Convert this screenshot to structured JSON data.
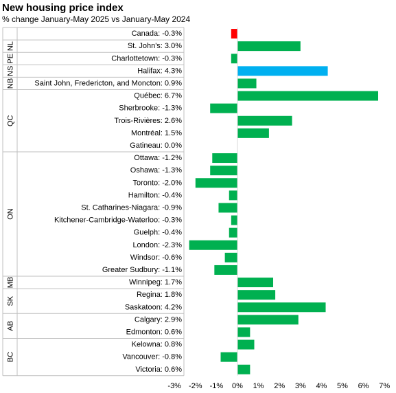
{
  "chart_data": {
    "type": "bar",
    "orientation": "horizontal",
    "title": "New housing price index",
    "subtitle": "% change January-May 2025 vs January-May 2024",
    "xlabel": "",
    "ylabel": "",
    "xlim": [
      -3,
      7
    ],
    "x_ticks": [
      "-3%",
      "-2%",
      "-1%",
      "0%",
      "1%",
      "2%",
      "3%",
      "4%",
      "5%",
      "6%",
      "7%"
    ],
    "grid": false,
    "legend": "none",
    "colors": {
      "default": "#00b050",
      "canada": "#ff0000",
      "highlight": "#00b0f0"
    },
    "groups": [
      {
        "name": "",
        "bars": [
          {
            "label": "Canada",
            "value": -0.3,
            "display": "-0.3%",
            "color": "canada"
          }
        ]
      },
      {
        "name": "NL",
        "bars": [
          {
            "label": "St. John's",
            "value": 3.0,
            "display": "3.0%"
          }
        ]
      },
      {
        "name": "PE",
        "bars": [
          {
            "label": "Charlottetown",
            "value": -0.3,
            "display": "-0.3%"
          }
        ]
      },
      {
        "name": "NS",
        "bars": [
          {
            "label": "Halifax",
            "value": 4.3,
            "display": "4.3%",
            "color": "highlight"
          }
        ]
      },
      {
        "name": "NB",
        "bars": [
          {
            "label": "Saint John, Fredericton, and Moncton",
            "value": 0.9,
            "display": "0.9%"
          }
        ]
      },
      {
        "name": "QC",
        "bars": [
          {
            "label": "Québec",
            "value": 6.7,
            "display": "6.7%"
          },
          {
            "label": "Sherbrooke",
            "value": -1.3,
            "display": "-1.3%"
          },
          {
            "label": "Trois-Rivières",
            "value": 2.6,
            "display": "2.6%"
          },
          {
            "label": "Montréal",
            "value": 1.5,
            "display": "1.5%"
          },
          {
            "label": "Gatineau",
            "value": 0.0,
            "display": "0.0%"
          }
        ]
      },
      {
        "name": "ON",
        "bars": [
          {
            "label": "Ottawa",
            "value": -1.2,
            "display": "-1.2%"
          },
          {
            "label": "Oshawa",
            "value": -1.3,
            "display": "-1.3%"
          },
          {
            "label": "Toronto",
            "value": -2.0,
            "display": "-2.0%"
          },
          {
            "label": "Hamilton",
            "value": -0.4,
            "display": "-0.4%"
          },
          {
            "label": "St. Catharines-Niagara",
            "value": -0.9,
            "display": "-0.9%"
          },
          {
            "label": "Kitchener-Cambridge-Waterloo",
            "value": -0.3,
            "display": "-0.3%"
          },
          {
            "label": "Guelph",
            "value": -0.4,
            "display": "-0.4%"
          },
          {
            "label": "London",
            "value": -2.3,
            "display": "-2.3%"
          },
          {
            "label": "Windsor",
            "value": -0.6,
            "display": "-0.6%"
          },
          {
            "label": "Greater Sudbury",
            "value": -1.1,
            "display": "-1.1%"
          }
        ]
      },
      {
        "name": "MB",
        "bars": [
          {
            "label": "Winnipeg",
            "value": 1.7,
            "display": "1.7%"
          }
        ]
      },
      {
        "name": "SK",
        "bars": [
          {
            "label": "Regina",
            "value": 1.8,
            "display": "1.8%"
          },
          {
            "label": "Saskatoon",
            "value": 4.2,
            "display": "4.2%"
          }
        ]
      },
      {
        "name": "AB",
        "bars": [
          {
            "label": "Calgary",
            "value": 2.9,
            "display": "2.9%"
          },
          {
            "label": "Edmonton",
            "value": 0.6,
            "display": "0.6%"
          }
        ]
      },
      {
        "name": "BC",
        "bars": [
          {
            "label": "Kelowna",
            "value": 0.8,
            "display": "0.8%"
          },
          {
            "label": "Vancouver",
            "value": -0.8,
            "display": "-0.8%"
          },
          {
            "label": "Victoria",
            "value": 0.6,
            "display": "0.6%"
          }
        ]
      }
    ]
  }
}
